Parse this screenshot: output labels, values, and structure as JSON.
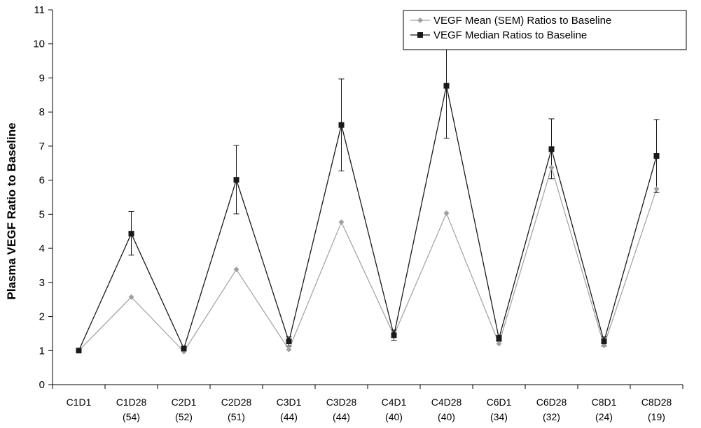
{
  "chart_data": {
    "type": "line",
    "title": "",
    "ylabel": "Plasma VEGF Ratio to Baseline",
    "xlabel": "",
    "ylim": [
      0,
      11
    ],
    "yticks": [
      0,
      1,
      2,
      3,
      4,
      5,
      6,
      7,
      8,
      9,
      10,
      11
    ],
    "categories": [
      "C1D1",
      "C1D28",
      "C2D1",
      "C2D28",
      "C3D1",
      "C3D28",
      "C4D1",
      "C4D28",
      "C6D1",
      "C6D28",
      "C8D1",
      "C8D28"
    ],
    "counts": [
      "",
      "(54)",
      "(52)",
      "(51)",
      "(44)",
      "(44)",
      "(40)",
      "(40)",
      "(34)",
      "(32)",
      "(24)",
      "(19)"
    ],
    "legend_position": "top-right",
    "series": [
      {
        "name": "VEGF Mean (SEM)  Ratios to Baseline",
        "marker": "diamond",
        "color": "#a0a0a0",
        "values": [
          1.0,
          2.57,
          0.97,
          3.38,
          1.03,
          4.77,
          1.45,
          5.03,
          1.2,
          6.37,
          1.15,
          5.74
        ]
      },
      {
        "name": "VEGF Median Ratios to Baseline",
        "marker": "square",
        "color": "#1a1a1a",
        "values": [
          1.0,
          4.43,
          1.06,
          6.01,
          1.27,
          7.62,
          1.45,
          8.77,
          1.36,
          6.91,
          1.27,
          6.71
        ],
        "error_upper": [
          1.0,
          5.08,
          1.1,
          7.02,
          1.4,
          8.97,
          1.6,
          10.3,
          1.45,
          7.8,
          1.4,
          7.78
        ],
        "error_lower": [
          1.0,
          3.8,
          1.0,
          5.01,
          1.13,
          6.27,
          1.3,
          7.23,
          1.27,
          6.04,
          1.13,
          5.64
        ]
      }
    ]
  }
}
